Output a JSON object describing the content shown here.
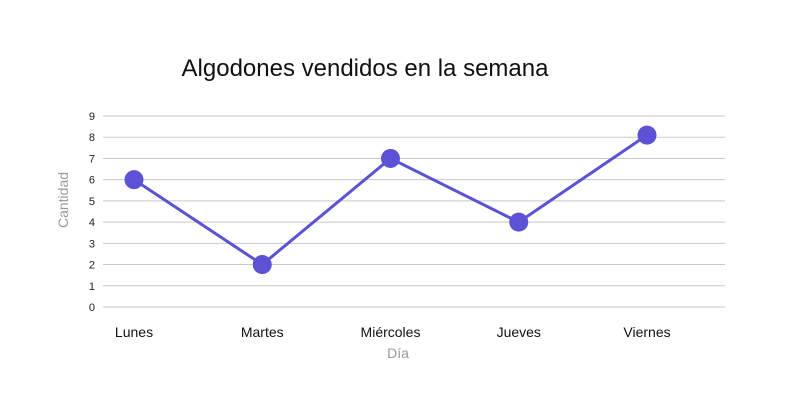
{
  "chart_data": {
    "type": "line",
    "title": "Algodones vendidos en la semana",
    "xlabel": "Día",
    "ylabel": "Cantidad",
    "categories": [
      "Lunes",
      "Martes",
      "Miércoles",
      "Jueves",
      "Viernes"
    ],
    "series": [
      {
        "values": [
          6,
          2,
          7,
          4,
          8.1
        ]
      }
    ],
    "ylim": [
      0,
      9
    ],
    "yticks": [
      "0",
      "1",
      "2",
      "3",
      "4",
      "5",
      "6",
      "7",
      "8",
      "9"
    ],
    "grid": true,
    "legend": "none",
    "colors": {
      "line": "#5b52d6",
      "marker": "#5b52d6",
      "grid": "#c9c9c9"
    }
  }
}
